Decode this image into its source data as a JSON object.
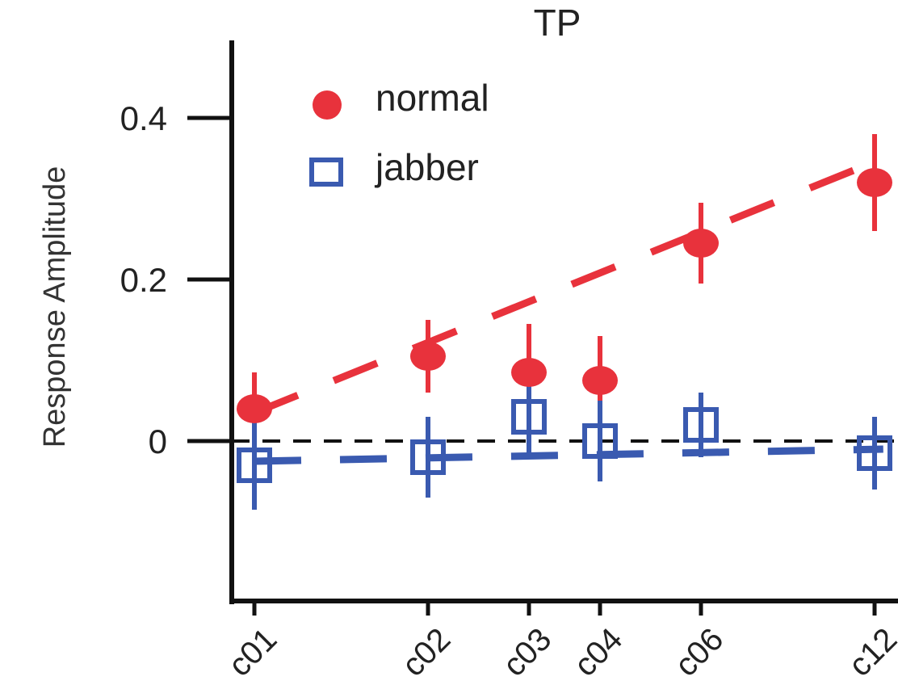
{
  "chart_data": {
    "type": "scatter",
    "title": "TP",
    "xlabel": "",
    "ylabel": "Response Amplitude",
    "categories": [
      "c01",
      "c02",
      "c03",
      "c04",
      "c06",
      "c12"
    ],
    "x": [
      1,
      2,
      3,
      4,
      6,
      12
    ],
    "ylim": [
      -0.2,
      0.5
    ],
    "yticks": [
      0,
      0.2,
      0.4
    ],
    "ytick_labels": [
      "0",
      "0.2",
      "0.4"
    ],
    "reference_line": 0,
    "legend_placement": "top-left",
    "series": [
      {
        "name": "normal",
        "color": "#e8323c",
        "marker": "filled-circle",
        "values": [
          0.04,
          0.105,
          0.085,
          0.075,
          0.245,
          0.32
        ],
        "error": [
          0.045,
          0.045,
          0.06,
          0.055,
          0.05,
          0.06
        ],
        "fit": {
          "style": "dashed",
          "x0": 1,
          "y0": 0.035,
          "x1": 12.3,
          "y1": 0.35
        }
      },
      {
        "name": "jabber",
        "color": "#3a5ab0",
        "marker": "open-square",
        "values": [
          -0.03,
          -0.02,
          0.03,
          0.0,
          0.02,
          -0.015
        ],
        "error": [
          0.055,
          0.05,
          0.05,
          0.05,
          0.04,
          0.045
        ],
        "fit": {
          "style": "dashed",
          "x0": 1,
          "y0": -0.025,
          "x1": 12.3,
          "y1": -0.01
        }
      }
    ]
  }
}
